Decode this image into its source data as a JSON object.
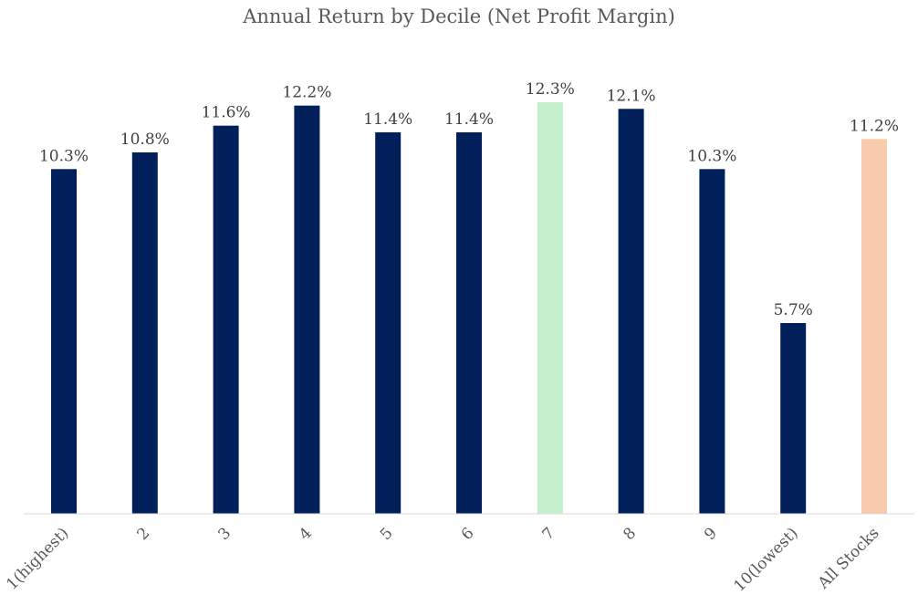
{
  "chart_data": {
    "type": "bar",
    "title": "Annual Return by Decile (Net Profit Margin)",
    "xlabel": "",
    "ylabel": "",
    "categories": [
      "1(highest)",
      "2",
      "3",
      "4",
      "5",
      "6",
      "7",
      "8",
      "9",
      "10(lowest)",
      "All Stocks"
    ],
    "values": [
      10.3,
      10.8,
      11.6,
      12.2,
      11.4,
      11.4,
      12.3,
      12.1,
      10.3,
      5.7,
      11.2
    ],
    "data_labels": [
      "10.3%",
      "10.8%",
      "11.6%",
      "12.2%",
      "11.4%",
      "11.4%",
      "12.3%",
      "12.1%",
      "10.3%",
      "5.7%",
      "11.2%"
    ],
    "bar_colors": [
      "#001f5b",
      "#001f5b",
      "#001f5b",
      "#001f5b",
      "#001f5b",
      "#001f5b",
      "#c6efce",
      "#001f5b",
      "#001f5b",
      "#001f5b",
      "#f8cbad"
    ],
    "ylim": [
      0,
      12.3
    ],
    "grid": false,
    "legend": "none",
    "tick_label_rotation": -45
  }
}
